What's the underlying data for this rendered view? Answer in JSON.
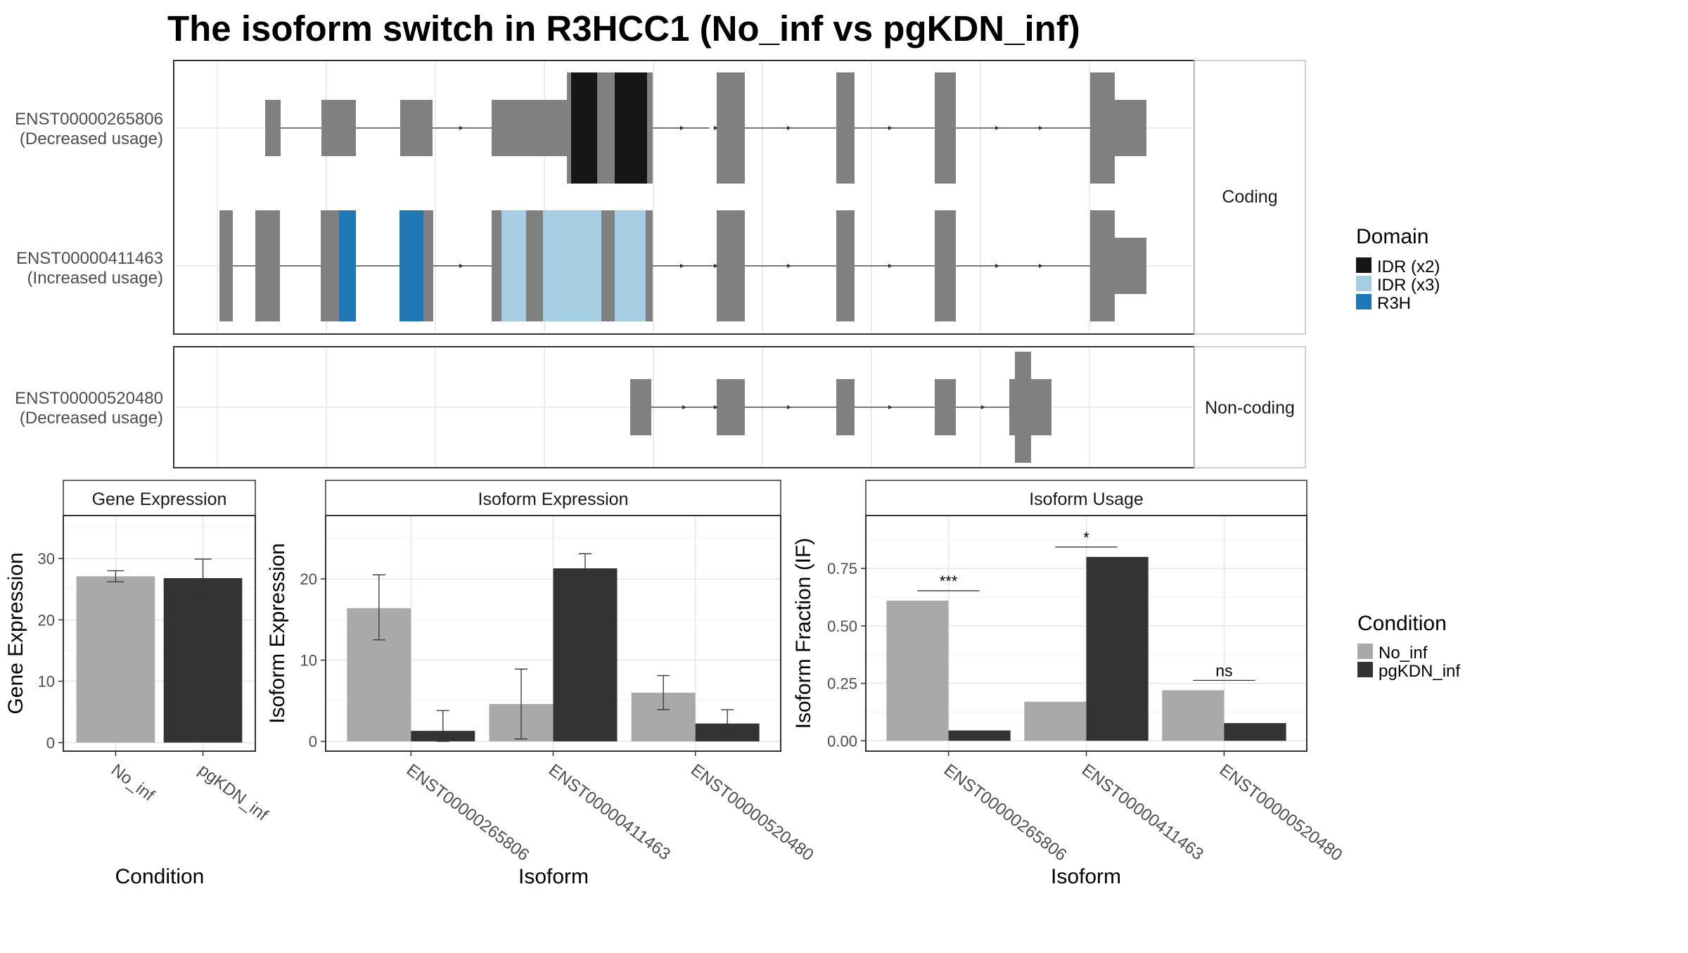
{
  "title": "The isoform switch in R3HCC1 (No_inf vs pgKDN_inf)",
  "isoform_structure": {
    "panels": [
      {
        "strip": "Coding",
        "isoforms": [
          {
            "id": "ENST00000265806",
            "usage": "(Decreased usage)"
          },
          {
            "id": "ENST00000411463",
            "usage": "(Increased usage)"
          }
        ]
      },
      {
        "strip": "Non-coding",
        "isoforms": [
          {
            "id": "ENST00000520480",
            "usage": "(Decreased usage)"
          }
        ]
      }
    ]
  },
  "domain_legend": {
    "title": "Domain",
    "items": [
      {
        "label": "IDR (x2)",
        "color": "#161616"
      },
      {
        "label": "IDR (x3)",
        "color": "#a6cee3"
      },
      {
        "label": "R3H",
        "color": "#1f78b4"
      }
    ]
  },
  "condition_legend": {
    "title": "Condition",
    "items": [
      {
        "label": "No_inf",
        "color": "#a9a9a9"
      },
      {
        "label": "pgKDN_inf",
        "color": "#333333"
      }
    ]
  },
  "chart_data": [
    {
      "type": "bar",
      "strip": "Gene Expression",
      "xlabel": "Condition",
      "ylabel": "Gene Expression",
      "categories": [
        "No_inf",
        "pgKDN_inf"
      ],
      "values": [
        27.1,
        26.8
      ],
      "errors": [
        [
          26.2,
          28.0
        ],
        [
          23.7,
          29.9
        ]
      ],
      "colors": [
        "#a9a9a9",
        "#333333"
      ],
      "ylim": [
        -1.4,
        37
      ],
      "yticks": [
        0,
        10,
        20,
        30
      ],
      "grid": true
    },
    {
      "type": "bar",
      "strip": "Isoform Expression",
      "xlabel": "Isoform",
      "ylabel": "Isoform Expression",
      "categories": [
        "ENST00000265806",
        "ENST00000411463",
        "ENST00000520480"
      ],
      "series": [
        {
          "name": "No_inf",
          "values": [
            16.4,
            4.6,
            6.0
          ],
          "errors": [
            [
              12.5,
              20.5
            ],
            [
              0.3,
              8.9
            ],
            [
              3.9,
              8.1
            ]
          ]
        },
        {
          "name": "pgKDN_inf",
          "values": [
            1.3,
            21.3,
            2.2
          ],
          "errors": [
            [
              0.0,
              3.8
            ],
            [
              19.5,
              23.1
            ],
            [
              0.5,
              3.9
            ]
          ]
        }
      ],
      "ylim": [
        -1.2,
        27.8
      ],
      "yticks": [
        0,
        10,
        20
      ],
      "grid": true
    },
    {
      "type": "bar",
      "strip": "Isoform Usage",
      "xlabel": "Isoform",
      "ylabel": "Isoform Fraction (IF)",
      "categories": [
        "ENST00000265806",
        "ENST00000411463",
        "ENST00000520480"
      ],
      "series": [
        {
          "name": "No_inf",
          "values": [
            0.61,
            0.17,
            0.22
          ]
        },
        {
          "name": "pgKDN_inf",
          "values": [
            0.045,
            0.8,
            0.077
          ]
        }
      ],
      "significance": [
        "***",
        "*",
        "ns"
      ],
      "ylim": [
        -0.045,
        0.98
      ],
      "yticks": [
        0.0,
        0.25,
        0.5,
        0.75
      ],
      "ytick_labels": [
        "0.00",
        "0.25",
        "0.50",
        "0.75"
      ],
      "grid": true
    }
  ]
}
